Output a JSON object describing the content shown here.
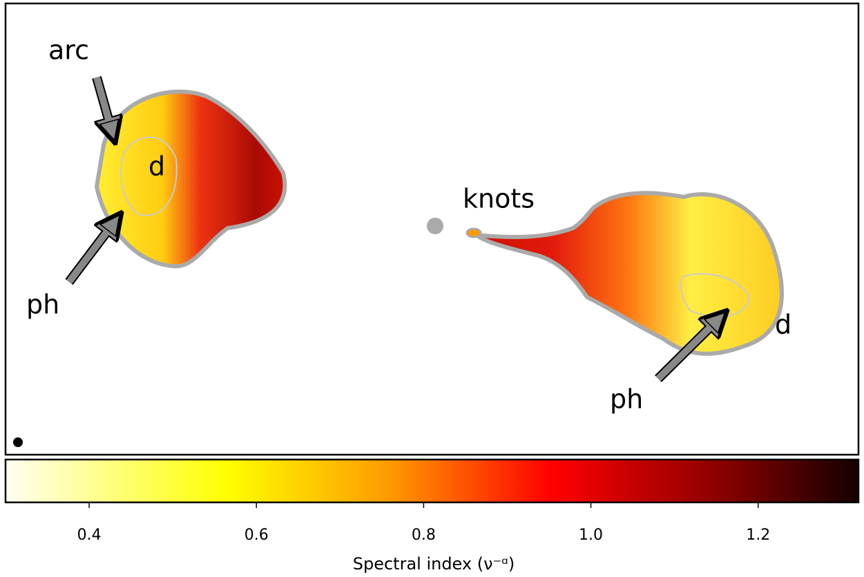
{
  "chart_data": {
    "type": "image",
    "annotations": [
      "arc",
      "d",
      "ph",
      "knots",
      "ph",
      "d"
    ],
    "colorbar": {
      "label": "Spectral index (ν⁻ᵅ)",
      "colormap": "afmhot_r",
      "xlim": [
        0.3,
        1.32
      ],
      "xticks": [
        0.4,
        0.6,
        0.8,
        {
          "value": 1,
          "label": "1.0"
        },
        1.2
      ]
    }
  }
}
